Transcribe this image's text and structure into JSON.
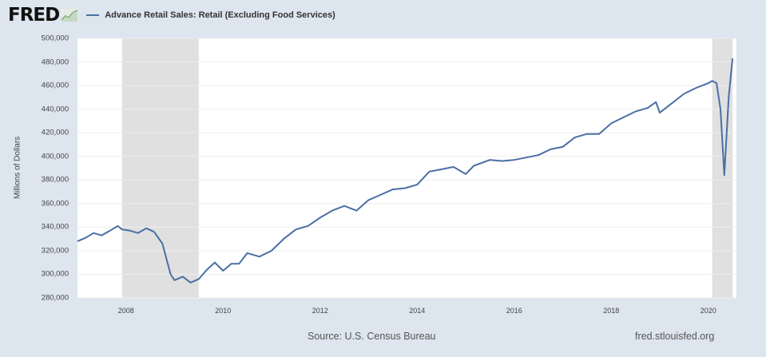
{
  "header": {
    "logo_text": "FRED",
    "logo_icon": "chart-line-icon",
    "legend_label": "Advance Retail Sales: Retail (Excluding Food Services)",
    "series_color": "#4a6fa5"
  },
  "footer": {
    "source": "Source: U.S. Census Bureau",
    "site": "fred.stlouisfed.org"
  },
  "colors": {
    "background": "#dde5ee",
    "plot_background": "#ffffff",
    "recession_shading": "#e0e0e0",
    "gridline": "#eeeeee",
    "line": "#4a6fa5"
  },
  "chart_data": {
    "type": "line",
    "title": "Advance Retail Sales: Retail (Excluding Food Services)",
    "xlabel": "",
    "ylabel": "Millions of Dollars",
    "ylim": [
      280000,
      500000
    ],
    "xlim": [
      2007.0,
      2020.58
    ],
    "yticks": [
      "500,000",
      "480,000",
      "460,000",
      "440,000",
      "420,000",
      "400,000",
      "380,000",
      "360,000",
      "340,000",
      "320,000",
      "300,000",
      "280,000"
    ],
    "xticks": [
      "2008",
      "2010",
      "2012",
      "2014",
      "2016",
      "2018",
      "2020"
    ],
    "grid": true,
    "legend_position": "top",
    "recessions": [
      [
        2007.92,
        2009.5
      ],
      [
        2020.08,
        2020.5
      ]
    ],
    "series": [
      {
        "name": "Advance Retail Sales: Retail (Excluding Food Services)",
        "x": [
          2007.0,
          2007.17,
          2007.33,
          2007.5,
          2007.67,
          2007.83,
          2007.92,
          2008.08,
          2008.25,
          2008.42,
          2008.58,
          2008.75,
          2008.92,
          2009.0,
          2009.17,
          2009.33,
          2009.5,
          2009.67,
          2009.83,
          2010.0,
          2010.17,
          2010.33,
          2010.5,
          2010.75,
          2011.0,
          2011.25,
          2011.5,
          2011.75,
          2012.0,
          2012.25,
          2012.5,
          2012.75,
          2013.0,
          2013.17,
          2013.5,
          2013.75,
          2014.0,
          2014.25,
          2014.5,
          2014.75,
          2015.0,
          2015.17,
          2015.5,
          2015.75,
          2016.0,
          2016.5,
          2016.75,
          2017.0,
          2017.25,
          2017.5,
          2017.75,
          2018.0,
          2018.25,
          2018.5,
          2018.75,
          2018.92,
          2019.0,
          2019.25,
          2019.5,
          2019.75,
          2020.0,
          2020.08,
          2020.17,
          2020.25,
          2020.33,
          2020.42,
          2020.5
        ],
        "values": [
          328000,
          331000,
          335000,
          333000,
          337000,
          341000,
          338000,
          337000,
          335000,
          339000,
          336000,
          326000,
          300000,
          295000,
          298000,
          293000,
          296000,
          304000,
          310000,
          303000,
          309000,
          309000,
          318000,
          315000,
          320000,
          330000,
          338000,
          341000,
          348000,
          354000,
          358000,
          354000,
          363000,
          366000,
          372000,
          373000,
          376000,
          387000,
          389000,
          391000,
          385000,
          392000,
          397000,
          396000,
          397000,
          401000,
          406000,
          408000,
          416000,
          419000,
          419000,
          428000,
          433000,
          438000,
          441000,
          446000,
          437000,
          445000,
          453000,
          458000,
          462000,
          464000,
          462000,
          440000,
          384000,
          450000,
          483000
        ]
      }
    ]
  }
}
